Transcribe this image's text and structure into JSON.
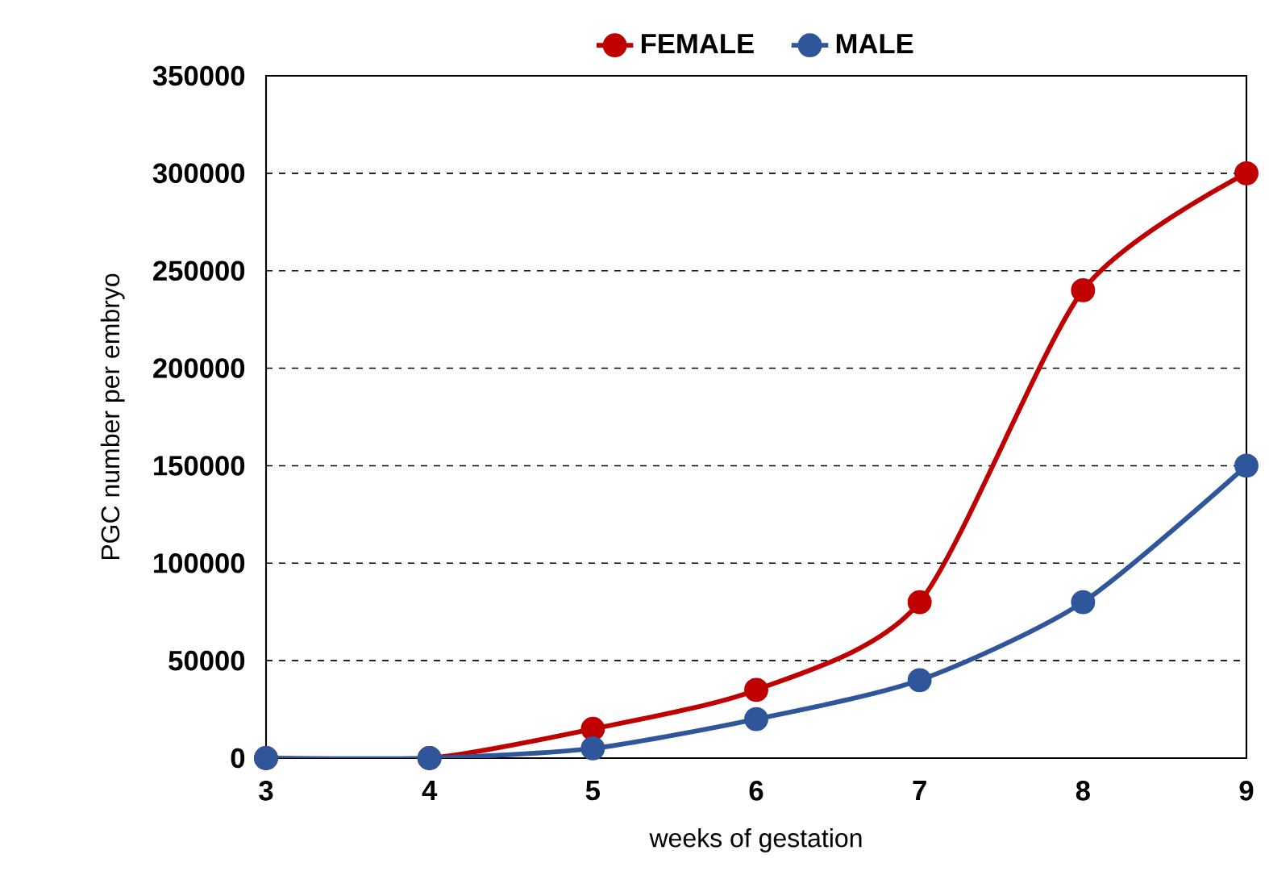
{
  "chart_data": {
    "type": "line",
    "xlabel": "weeks of gestation",
    "ylabel": "PGC number per embryo",
    "x": [
      3,
      4,
      5,
      6,
      7,
      8,
      9
    ],
    "series": [
      {
        "name": "FEMALE",
        "color": "#c00000",
        "values": [
          0,
          0,
          15000,
          35000,
          80000,
          240000,
          300000
        ]
      },
      {
        "name": "MALE",
        "color": "#2f559a",
        "values": [
          0,
          0,
          5000,
          20000,
          40000,
          80000,
          150000
        ]
      }
    ],
    "xlim": [
      3,
      9
    ],
    "xticks": [
      3,
      4,
      5,
      6,
      7,
      8,
      9
    ],
    "ylim": [
      0,
      350000
    ],
    "yticks": [
      0,
      50000,
      100000,
      150000,
      200000,
      250000,
      300000,
      350000
    ],
    "grid": "y",
    "legend": "top",
    "marker": "circle",
    "line_style": "solid"
  }
}
